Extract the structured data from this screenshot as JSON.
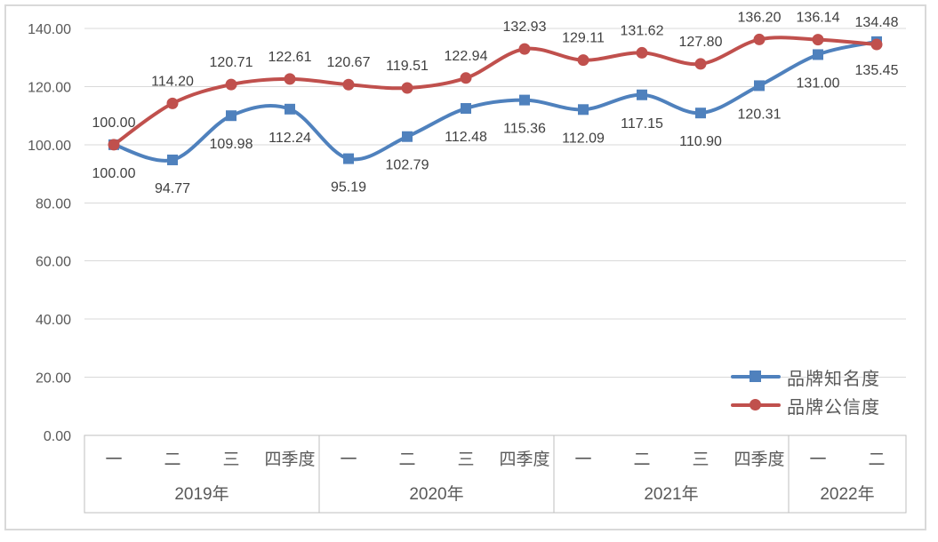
{
  "colors": {
    "background": "#FFFFFF",
    "chart_border": "#D9D9D9",
    "grid": "#D9D9D9",
    "axis_table_border": "#BFBFBF",
    "axis_text": "#595959",
    "data_label_text": "#404040"
  },
  "chart_data": {
    "type": "line",
    "title": "",
    "smooth": true,
    "grid": true,
    "data_labels": true,
    "legend_position": "right-lower",
    "y_axis": {
      "min": 0,
      "max": 140,
      "step": 20,
      "tick_labels": [
        "0.00",
        "20.00",
        "40.00",
        "60.00",
        "80.00",
        "100.00",
        "120.00",
        "140.00"
      ]
    },
    "x_axis": {
      "quarters": [
        "一",
        "二",
        "三",
        "四季度",
        "一",
        "二",
        "三",
        "四季度",
        "一",
        "二",
        "三",
        "四季度",
        "一",
        "二"
      ],
      "year_groups": [
        {
          "label": "2019年",
          "count": 4
        },
        {
          "label": "2020年",
          "count": 4
        },
        {
          "label": "2021年",
          "count": 4
        },
        {
          "label": "2022年",
          "count": 2
        }
      ]
    },
    "series": [
      {
        "key": "brand-awareness",
        "name": "品牌知名度",
        "color": "#4F81BD",
        "marker": "square",
        "labels_position": "below",
        "values": [
          100.0,
          94.77,
          109.98,
          112.24,
          95.19,
          102.79,
          112.48,
          115.36,
          112.09,
          117.15,
          110.9,
          120.31,
          131.0,
          135.45
        ]
      },
      {
        "key": "brand-credibility",
        "name": "品牌公信度",
        "color": "#C0504D",
        "marker": "circle",
        "labels_position": "above",
        "values": [
          100.0,
          114.2,
          120.71,
          122.61,
          120.67,
          119.51,
          122.94,
          132.93,
          129.11,
          131.62,
          127.8,
          136.2,
          136.14,
          134.48
        ]
      }
    ]
  }
}
